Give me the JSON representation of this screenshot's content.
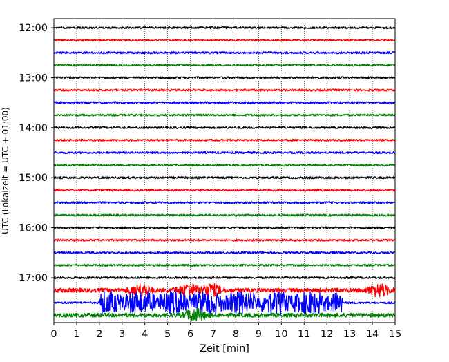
{
  "chart_data": {
    "type": "line",
    "title": "",
    "xlabel": "Zeit  [min]",
    "ylabel": "UTC (Lokalzeit = UTC + 01:00)",
    "xlim": [
      0,
      15
    ],
    "x_ticks": [
      "0",
      "1",
      "2",
      "3",
      "4",
      "5",
      "6",
      "7",
      "8",
      "9",
      "10",
      "11",
      "12",
      "13",
      "14",
      "15"
    ],
    "y_ticks": [
      "12:00",
      "13:00",
      "14:00",
      "15:00",
      "16:00",
      "17:00"
    ],
    "vertical_grid": "dotted, every 1 min",
    "trace_interval_min": 15,
    "trace_colors_cycle": [
      "#000000",
      "#ff0000",
      "#0000ff",
      "#008000"
    ],
    "traces": [
      {
        "start": "12:00",
        "color": "#000000",
        "activity": "low"
      },
      {
        "start": "12:15",
        "color": "#ff0000",
        "activity": "low"
      },
      {
        "start": "12:30",
        "color": "#0000ff",
        "activity": "low"
      },
      {
        "start": "12:45",
        "color": "#008000",
        "activity": "low"
      },
      {
        "start": "13:00",
        "color": "#000000",
        "activity": "low"
      },
      {
        "start": "13:15",
        "color": "#ff0000",
        "activity": "low"
      },
      {
        "start": "13:30",
        "color": "#0000ff",
        "activity": "low"
      },
      {
        "start": "13:45",
        "color": "#008000",
        "activity": "low"
      },
      {
        "start": "14:00",
        "color": "#000000",
        "activity": "low"
      },
      {
        "start": "14:15",
        "color": "#ff0000",
        "activity": "low"
      },
      {
        "start": "14:30",
        "color": "#0000ff",
        "activity": "low"
      },
      {
        "start": "14:45",
        "color": "#008000",
        "activity": "low"
      },
      {
        "start": "15:00",
        "color": "#000000",
        "activity": "low"
      },
      {
        "start": "15:15",
        "color": "#ff0000",
        "activity": "low"
      },
      {
        "start": "15:30",
        "color": "#0000ff",
        "activity": "low"
      },
      {
        "start": "15:45",
        "color": "#008000",
        "activity": "low"
      },
      {
        "start": "16:00",
        "color": "#000000",
        "activity": "low"
      },
      {
        "start": "16:15",
        "color": "#ff0000",
        "activity": "low"
      },
      {
        "start": "16:30",
        "color": "#0000ff",
        "activity": "low"
      },
      {
        "start": "16:45",
        "color": "#008000",
        "activity": "low"
      },
      {
        "start": "17:00",
        "color": "#000000",
        "activity": "low"
      },
      {
        "start": "17:15",
        "color": "#ff0000",
        "activity": "high",
        "bursts_min": [
          3.8,
          5.9,
          6.9,
          14.3
        ]
      },
      {
        "start": "17:30",
        "color": "#0000ff",
        "activity": "very high",
        "burst_range_min": [
          2,
          12.7
        ]
      },
      {
        "start": "17:45",
        "color": "#008000",
        "activity": "high",
        "bursts_min": [
          6.2
        ]
      }
    ]
  }
}
